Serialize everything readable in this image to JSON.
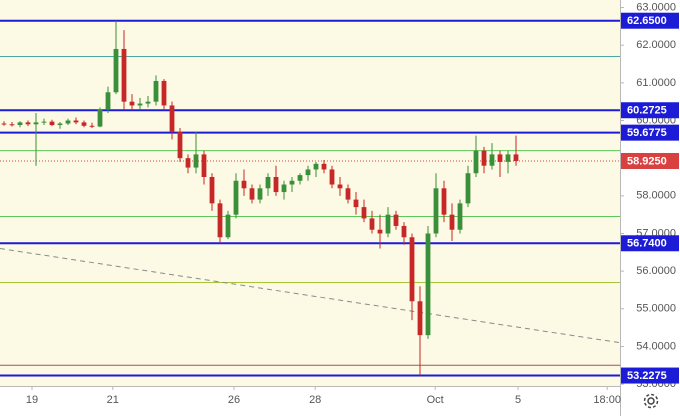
{
  "chart_data": {
    "type": "candlestick",
    "up_color": "#3a8f3a",
    "down_color": "#c62828",
    "background": "#fcf9e4",
    "xlim": [
      -0.5,
      77
    ],
    "ylim": [
      52.95,
      63.2
    ],
    "xticks": [
      {
        "value": 3.5,
        "label": "19"
      },
      {
        "value": 13.6,
        "label": "21"
      },
      {
        "value": 28.75,
        "label": "26"
      },
      {
        "value": 38.9,
        "label": "28"
      },
      {
        "value": 53.9,
        "label": "Oct"
      },
      {
        "value": 64.25,
        "label": "5"
      },
      {
        "value": 75.4,
        "label": "18:00"
      }
    ],
    "yticks": [
      {
        "value": 63,
        "label": "63.0000"
      },
      {
        "value": 62,
        "label": "62.0000"
      },
      {
        "value": 61,
        "label": "61.0000"
      },
      {
        "value": 60,
        "label": "60.0000"
      },
      {
        "value": 58,
        "label": "58.0000"
      },
      {
        "value": 57,
        "label": "57.0000"
      },
      {
        "value": 56,
        "label": "56.0000"
      },
      {
        "value": 55,
        "label": "55.0000"
      },
      {
        "value": 54,
        "label": "54.0000"
      },
      {
        "value": 53,
        "label": "53.0000"
      }
    ],
    "ohlc": [
      [
        59.92,
        59.98,
        59.86,
        59.9
      ],
      [
        59.9,
        59.96,
        59.84,
        59.88
      ],
      [
        59.88,
        59.98,
        59.82,
        59.95
      ],
      [
        59.95,
        60.0,
        59.85,
        59.9
      ],
      [
        59.9,
        60.2,
        58.8,
        59.95
      ],
      [
        59.95,
        60.05,
        59.88,
        59.97
      ],
      [
        59.97,
        60.02,
        59.85,
        59.88
      ],
      [
        59.88,
        59.96,
        59.78,
        59.92
      ],
      [
        59.92,
        60.05,
        59.88,
        60.0
      ],
      [
        60.0,
        60.08,
        59.9,
        59.95
      ],
      [
        59.95,
        60.0,
        59.82,
        59.86
      ],
      [
        59.86,
        59.94,
        59.8,
        59.84
      ],
      [
        59.84,
        60.35,
        59.82,
        60.3
      ],
      [
        60.3,
        60.9,
        60.2,
        60.75
      ],
      [
        60.75,
        62.65,
        60.7,
        61.9
      ],
      [
        61.9,
        62.4,
        60.3,
        60.5
      ],
      [
        60.5,
        60.7,
        60.3,
        60.4
      ],
      [
        60.4,
        60.6,
        60.3,
        60.45
      ],
      [
        60.45,
        60.65,
        60.35,
        60.5
      ],
      [
        60.5,
        61.2,
        60.4,
        61.05
      ],
      [
        61.05,
        61.1,
        60.3,
        60.4
      ],
      [
        60.4,
        60.5,
        59.5,
        59.7
      ],
      [
        59.7,
        59.8,
        58.9,
        59.0
      ],
      [
        59.0,
        59.1,
        58.6,
        58.75
      ],
      [
        58.75,
        59.7,
        58.6,
        59.1
      ],
      [
        59.1,
        59.2,
        58.3,
        58.5
      ],
      [
        58.5,
        58.6,
        57.6,
        57.8
      ],
      [
        57.8,
        57.9,
        56.74,
        56.9
      ],
      [
        56.9,
        57.6,
        56.85,
        57.5
      ],
      [
        57.5,
        58.6,
        57.4,
        58.4
      ],
      [
        58.4,
        58.7,
        58.0,
        58.2
      ],
      [
        58.2,
        58.3,
        57.8,
        57.9
      ],
      [
        57.9,
        58.3,
        57.8,
        58.2
      ],
      [
        58.2,
        58.6,
        58.0,
        58.5
      ],
      [
        58.5,
        58.8,
        58.0,
        58.1
      ],
      [
        58.1,
        58.4,
        57.9,
        58.3
      ],
      [
        58.3,
        58.5,
        58.1,
        58.4
      ],
      [
        58.4,
        58.6,
        58.3,
        58.55
      ],
      [
        58.55,
        58.8,
        58.4,
        58.7
      ],
      [
        58.7,
        58.9,
        58.5,
        58.85
      ],
      [
        58.85,
        58.95,
        58.6,
        58.7
      ],
      [
        58.7,
        58.8,
        58.2,
        58.3
      ],
      [
        58.3,
        58.5,
        58.0,
        58.2
      ],
      [
        58.2,
        58.3,
        57.8,
        57.9
      ],
      [
        57.9,
        58.1,
        57.5,
        57.7
      ],
      [
        57.7,
        57.9,
        57.3,
        57.4
      ],
      [
        57.4,
        57.6,
        57.0,
        57.1
      ],
      [
        57.1,
        57.5,
        56.6,
        57.0
      ],
      [
        57.0,
        57.7,
        56.9,
        57.5
      ],
      [
        57.5,
        57.6,
        57.1,
        57.2
      ],
      [
        57.2,
        57.3,
        56.7,
        56.9
      ],
      [
        56.9,
        57.0,
        54.7,
        55.2
      ],
      [
        55.2,
        55.6,
        53.23,
        54.3
      ],
      [
        54.3,
        57.2,
        54.2,
        57.0
      ],
      [
        57.0,
        58.6,
        56.9,
        58.2
      ],
      [
        58.2,
        58.4,
        57.3,
        57.5
      ],
      [
        57.5,
        57.8,
        56.8,
        57.1
      ],
      [
        57.1,
        57.9,
        57.0,
        57.8
      ],
      [
        57.8,
        58.8,
        57.7,
        58.6
      ],
      [
        58.6,
        59.6,
        58.5,
        59.2
      ],
      [
        59.2,
        59.3,
        58.6,
        58.8
      ],
      [
        58.8,
        59.4,
        58.7,
        59.1
      ],
      [
        59.1,
        59.2,
        58.5,
        58.9
      ],
      [
        58.9,
        59.2,
        58.6,
        59.1
      ],
      [
        59.1,
        59.6,
        58.8,
        58.925
      ]
    ],
    "guides": [
      {
        "value": 61.7,
        "color": "#4aa8a0"
      },
      {
        "value": 59.2,
        "color": "#5cc75c"
      },
      {
        "value": 57.45,
        "color": "#5cc75c"
      },
      {
        "value": 55.7,
        "color": "#a8c43a"
      },
      {
        "value": 53.5,
        "color": "#b0504a"
      }
    ],
    "levels": [
      {
        "value": 62.65,
        "label": "62.6500",
        "color": "#1c1cd6"
      },
      {
        "value": 60.2725,
        "label": "60.2725",
        "color": "#1c1cd6"
      },
      {
        "value": 59.6775,
        "label": "59.6775",
        "color": "#1c1cd6"
      },
      {
        "value": 56.74,
        "label": "56.7400",
        "color": "#1c1cd6"
      },
      {
        "value": 53.2275,
        "label": "53.2275",
        "color": "#1c1cd6"
      }
    ],
    "last_price": {
      "value": 58.925,
      "label": "58.9250",
      "color": "#d94040"
    },
    "trendline": {
      "x": [
        -0.5,
        77
      ],
      "y": [
        56.6,
        54.1
      ]
    }
  }
}
